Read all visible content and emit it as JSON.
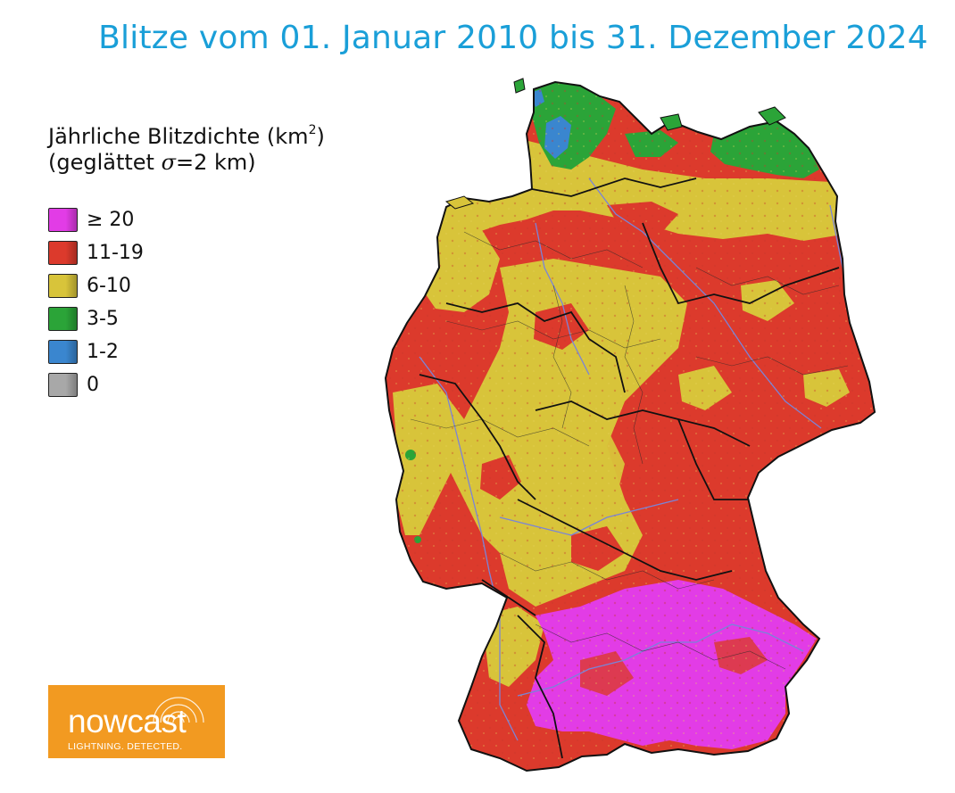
{
  "title": "Blitze vom 01. Januar 2010 bis 31. Dezember 2024",
  "legend": {
    "title_line1": "Jährliche Blitzdichte (km",
    "title_line1_sup": "2",
    "title_line1_end": ")",
    "title_line2_start": "(geglättet ",
    "title_line2_sigma": "σ",
    "title_line2_end": "=2 km)",
    "items": [
      {
        "label": "≥ 20",
        "color": "#e23ce6"
      },
      {
        "label": "11-19",
        "color": "#dc3a2c"
      },
      {
        "label": "6-10",
        "color": "#d8c43a"
      },
      {
        "label": "3-5",
        "color": "#2ba438"
      },
      {
        "label": "1-2",
        "color": "#3a86cf"
      },
      {
        "label": "0",
        "color": "#a8a8a8"
      }
    ]
  },
  "logo": {
    "word": "nowcast",
    "tagline": "LIGHTNING. DETECTED."
  },
  "map": {
    "region": "Deutschland"
  }
}
